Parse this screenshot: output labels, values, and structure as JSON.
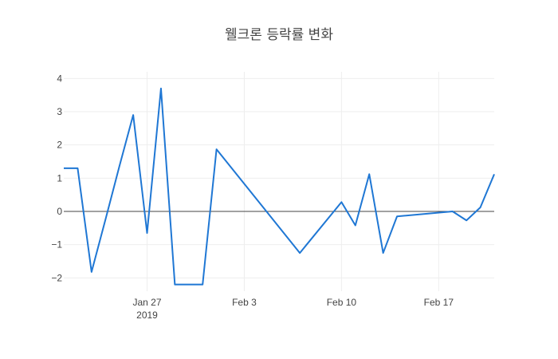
{
  "chart_data": {
    "type": "line",
    "title": "웰크론 등락률 변화",
    "xlabel": "",
    "ylabel": "",
    "xlim": [
      "2019-01-21",
      "2019-02-21"
    ],
    "ylim": [
      -2.4,
      4.2
    ],
    "grid": true,
    "zeroline": true,
    "x_ticks": [
      {
        "date": "2019-01-27",
        "label": "Jan 27",
        "sublabel": "2019"
      },
      {
        "date": "2019-02-03",
        "label": "Feb 3",
        "sublabel": ""
      },
      {
        "date": "2019-02-10",
        "label": "Feb 10",
        "sublabel": ""
      },
      {
        "date": "2019-02-17",
        "label": "Feb 17",
        "sublabel": ""
      }
    ],
    "y_ticks": [
      {
        "value": -2,
        "label": "−2"
      },
      {
        "value": -1,
        "label": "−1"
      },
      {
        "value": 0,
        "label": "0"
      },
      {
        "value": 1,
        "label": "1"
      },
      {
        "value": 2,
        "label": "2"
      },
      {
        "value": 3,
        "label": "3"
      },
      {
        "value": 4,
        "label": "4"
      }
    ],
    "series": [
      {
        "color": "#1f77d4",
        "points": [
          {
            "x": "2019-01-21",
            "y": 1.3
          },
          {
            "x": "2019-01-22",
            "y": 1.3
          },
          {
            "x": "2019-01-23",
            "y": -1.82
          },
          {
            "x": "2019-01-24",
            "y": -0.25
          },
          {
            "x": "2019-01-25",
            "y": 1.35
          },
          {
            "x": "2019-01-26",
            "y": 2.9
          },
          {
            "x": "2019-01-27",
            "y": -0.65
          },
          {
            "x": "2019-01-28",
            "y": 3.7
          },
          {
            "x": "2019-01-29",
            "y": -2.2
          },
          {
            "x": "2019-01-30",
            "y": -2.2
          },
          {
            "x": "2019-01-31",
            "y": -2.2
          },
          {
            "x": "2019-02-01",
            "y": 1.87
          },
          {
            "x": "2019-02-07",
            "y": -1.25
          },
          {
            "x": "2019-02-10",
            "y": 0.28
          },
          {
            "x": "2019-02-11",
            "y": -0.42
          },
          {
            "x": "2019-02-12",
            "y": 1.12
          },
          {
            "x": "2019-02-13",
            "y": -1.25
          },
          {
            "x": "2019-02-14",
            "y": -0.15
          },
          {
            "x": "2019-02-18",
            "y": 0.0
          },
          {
            "x": "2019-02-19",
            "y": -0.27
          },
          {
            "x": "2019-02-20",
            "y": 0.12
          },
          {
            "x": "2019-02-21",
            "y": 1.12
          }
        ]
      }
    ]
  }
}
